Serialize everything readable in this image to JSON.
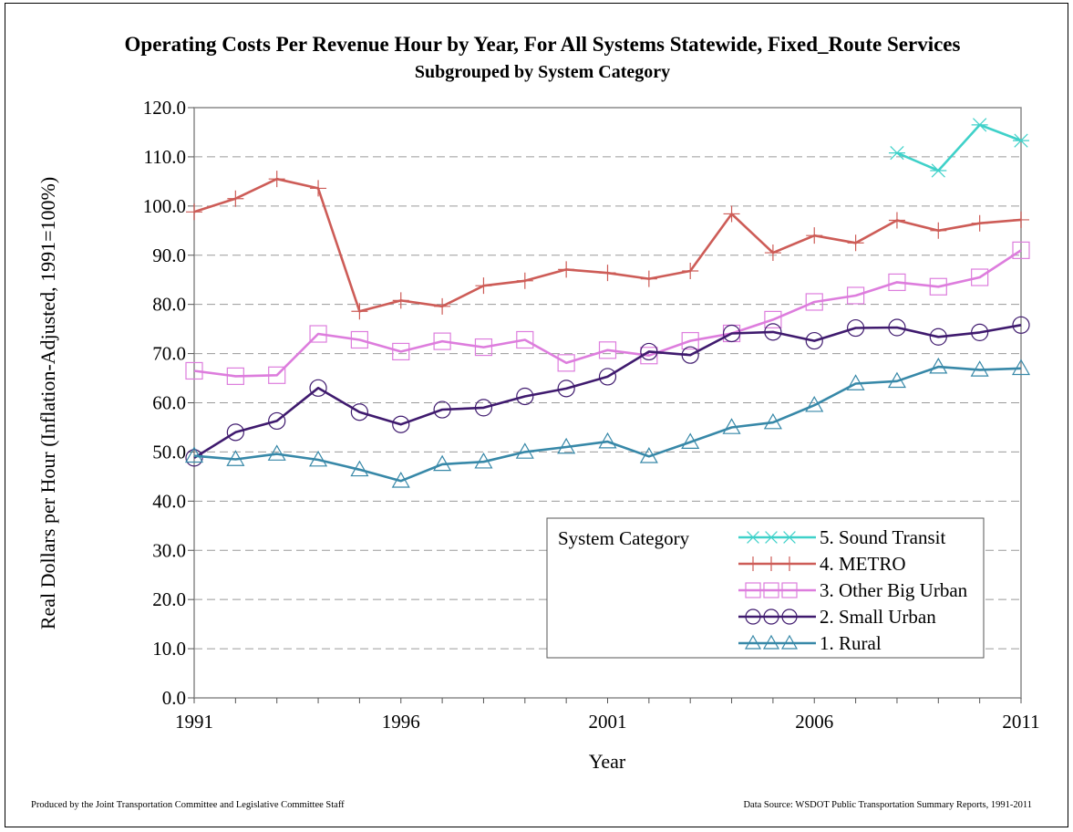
{
  "chart_data": {
    "type": "line",
    "title": "Operating Costs Per Revenue Hour by Year, For All Systems Statewide, Fixed_Route Services",
    "subtitle": "Subgrouped by System Category",
    "xlabel": "Year",
    "ylabel": "Real Dollars per Hour (Inflation-Adjusted, 1991=100%)",
    "xlim": [
      1991,
      2011
    ],
    "ylim": [
      0,
      120
    ],
    "x_ticks": [
      1991,
      1996,
      2001,
      2006,
      2011
    ],
    "y_ticks": [
      "0.0",
      "10.0",
      "20.0",
      "30.0",
      "40.0",
      "50.0",
      "60.0",
      "70.0",
      "80.0",
      "90.0",
      "100.0",
      "110.0",
      "120.0"
    ],
    "grid": "horizontal-dashed",
    "legend_title": "System Category",
    "legend_position": "bottom-right",
    "series": [
      {
        "name": "5. Sound Transit",
        "color": "#3fd1c9",
        "marker": "star",
        "x": [
          2008,
          2009,
          2010,
          2011
        ],
        "values": [
          110.8,
          107.2,
          116.5,
          113.3
        ]
      },
      {
        "name": "4. METRO",
        "color": "#cd5c57",
        "marker": "plus",
        "x": [
          1991,
          1992,
          1993,
          1994,
          1995,
          1996,
          1997,
          1998,
          1999,
          2000,
          2001,
          2002,
          2003,
          2004,
          2005,
          2006,
          2007,
          2008,
          2009,
          2010,
          2011
        ],
        "values": [
          98.8,
          101.5,
          105.5,
          103.6,
          78.6,
          80.8,
          79.6,
          83.8,
          84.8,
          87.1,
          86.4,
          85.2,
          86.8,
          98.4,
          90.5,
          94.0,
          92.5,
          97.1,
          95.0,
          96.5,
          97.2
        ]
      },
      {
        "name": "3. Other Big Urban",
        "color": "#dd7ddd",
        "marker": "square",
        "x": [
          1991,
          1992,
          1993,
          1994,
          1995,
          1996,
          1997,
          1998,
          1999,
          2000,
          2001,
          2002,
          2003,
          2004,
          2005,
          2006,
          2007,
          2008,
          2009,
          2010,
          2011
        ],
        "values": [
          66.5,
          65.4,
          65.6,
          74.0,
          72.8,
          70.4,
          72.5,
          71.3,
          72.8,
          68.1,
          70.7,
          69.6,
          72.6,
          74.1,
          76.9,
          80.5,
          81.8,
          84.5,
          83.6,
          85.5,
          91.0
        ]
      },
      {
        "name": "2. Small Urban",
        "color": "#3f1a6e",
        "marker": "circle",
        "x": [
          1991,
          1992,
          1993,
          1994,
          1995,
          1996,
          1997,
          1998,
          1999,
          2000,
          2001,
          2002,
          2003,
          2004,
          2005,
          2006,
          2007,
          2008,
          2009,
          2010,
          2011
        ],
        "values": [
          48.8,
          54.0,
          56.3,
          63.0,
          58.1,
          55.6,
          58.6,
          59.0,
          61.3,
          62.9,
          65.3,
          70.4,
          69.7,
          74.1,
          74.4,
          72.6,
          75.2,
          75.3,
          73.4,
          74.3,
          75.8
        ]
      },
      {
        "name": "1. Rural",
        "color": "#3788a8",
        "marker": "triangle",
        "x": [
          1991,
          1992,
          1993,
          1994,
          1995,
          1996,
          1997,
          1998,
          1999,
          2000,
          2001,
          2002,
          2003,
          2004,
          2005,
          2006,
          2007,
          2008,
          2009,
          2010,
          2011
        ],
        "values": [
          49.2,
          48.5,
          49.6,
          48.4,
          46.4,
          44.1,
          47.5,
          48.0,
          50.0,
          51.0,
          52.1,
          49.1,
          52.0,
          55.0,
          56.0,
          59.5,
          63.9,
          64.4,
          67.3,
          66.7,
          67.0
        ]
      }
    ]
  },
  "footer": {
    "left": "Produced by the Joint Transportation Committee and Legislative Committee Staff",
    "right": "Data Source: WSDOT Public Transportation Summary Reports, 1991-2011"
  }
}
